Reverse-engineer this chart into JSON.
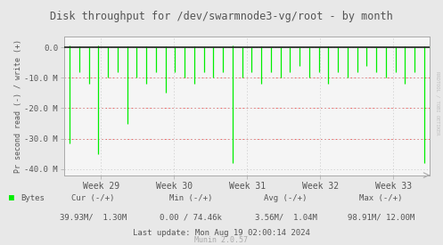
{
  "title": "Disk throughput for /dev/swarmnode3-vg/root - by month",
  "ylabel": "Pr second read (-) / write (+)",
  "background_color": "#e8e8e8",
  "plot_bg_color": "#f5f5f5",
  "grid_color": "#c8c8c8",
  "line_color": "#00ee00",
  "ylim_min": -42000000,
  "ylim_max": 3500000,
  "ytick_vals": [
    0,
    -10000000,
    -20000000,
    -30000000,
    -40000000
  ],
  "ytick_labels": [
    "0.0",
    "-10.0 M",
    "-20.0 M",
    "-30.0 M",
    "-40.0 M"
  ],
  "week_labels": [
    "Week 29",
    "Week 30",
    "Week 31",
    "Week 32",
    "Week 33"
  ],
  "text_color": "#555555",
  "title_color": "#555555",
  "watermark": "RRDTOOL / TOBI OETIKER",
  "footer_munin": "Munin 2.0.57",
  "hline_color": "#222222",
  "redline_color": "#ee4444",
  "num_spikes": 38,
  "spike_depths": [
    -31500000,
    -8000000,
    -12000000,
    -35000000,
    -10000000,
    -8000000,
    -25000000,
    -10000000,
    -12000000,
    -8000000,
    -15000000,
    -8000000,
    -10000000,
    -12000000,
    -8000000,
    -10000000,
    -8000000,
    -38000000,
    -10000000,
    -8000000,
    -12000000,
    -8000000,
    -10000000,
    -8000000,
    -6000000,
    -10000000,
    -8000000,
    -12000000,
    -8000000,
    -10000000,
    -8000000,
    -6000000,
    -8000000,
    -10000000,
    -8000000,
    -12000000,
    -8000000,
    -38000000
  ],
  "write_spikes": [
    600000,
    300000,
    200000,
    500000,
    200000,
    150000,
    400000,
    200000,
    300000,
    150000,
    250000,
    150000,
    200000,
    300000,
    150000,
    200000,
    150000,
    500000,
    200000,
    150000,
    300000,
    150000,
    200000,
    150000,
    100000,
    200000,
    150000,
    300000,
    150000,
    200000,
    150000,
    100000,
    150000,
    200000,
    150000,
    250000,
    150000,
    400000
  ]
}
